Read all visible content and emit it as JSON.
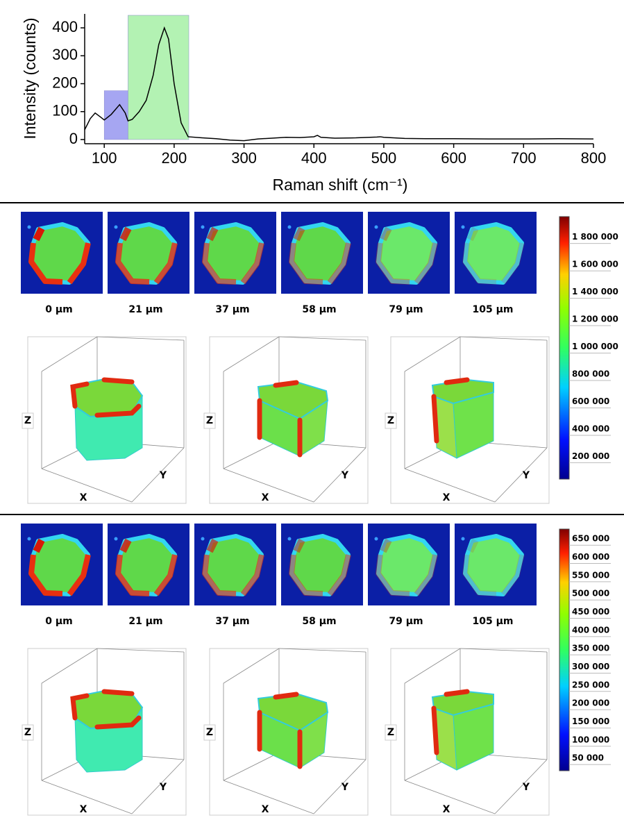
{
  "chart_data": {
    "type": "line",
    "ylabel": "Intensity (counts)",
    "xlabel": "Raman shift (cm⁻¹)",
    "x": [
      72,
      80,
      87,
      95,
      100,
      110,
      122,
      130,
      134,
      140,
      150,
      160,
      170,
      178,
      186,
      192,
      200,
      210,
      220,
      240,
      260,
      280,
      300,
      320,
      340,
      360,
      380,
      400,
      405,
      410,
      430,
      460,
      490,
      495,
      500,
      530,
      560,
      600,
      650,
      700,
      750,
      800
    ],
    "series": [
      {
        "color": "#000000",
        "values": [
          35,
          75,
          95,
          80,
          70,
          90,
          125,
          95,
          67,
          72,
          100,
          140,
          230,
          340,
          400,
          360,
          200,
          60,
          10,
          6,
          3,
          -2,
          -4,
          2,
          5,
          8,
          7,
          10,
          15,
          8,
          5,
          6,
          9,
          10,
          8,
          4,
          3,
          3,
          2,
          2,
          3,
          2
        ]
      }
    ],
    "regions": [
      {
        "xmin": 100,
        "xmax": 134,
        "ymax": 175,
        "color": "#a6a6f2"
      },
      {
        "xmin": 134,
        "xmax": 221,
        "ymax": 445,
        "color": "#b3f2b3"
      }
    ],
    "xlim": [
      72,
      800
    ],
    "xticks": [
      100,
      200,
      300,
      400,
      500,
      600,
      700,
      800
    ],
    "ylim": [
      -15,
      450
    ],
    "yticks": [
      0,
      100,
      200,
      300,
      400
    ]
  },
  "panels": [
    {
      "depths": [
        "0 µm",
        "21 µm",
        "37 µm",
        "58 µm",
        "79 µm",
        "105 µm"
      ],
      "views": [
        {
          "z": "Z",
          "x": "X",
          "y": "Y"
        },
        {
          "z": "Z",
          "x": "X",
          "y": "Y"
        },
        {
          "z": "Z",
          "x": "X",
          "y": "Y"
        }
      ],
      "colorbar": {
        "lim": [
          35000,
          1950000
        ],
        "ticks": [
          {
            "value": 1800000,
            "label": "1 800 000"
          },
          {
            "value": 1600000,
            "label": "1 600 000"
          },
          {
            "value": 1400000,
            "label": "1 400 000"
          },
          {
            "value": 1200000,
            "label": "1 200 000"
          },
          {
            "value": 1000000,
            "label": "1 000 000"
          },
          {
            "value": 800000,
            "label": "800 000"
          },
          {
            "value": 600000,
            "label": "600 000"
          },
          {
            "value": 400000,
            "label": "400 000"
          },
          {
            "value": 200000,
            "label": "200 000"
          }
        ]
      }
    },
    {
      "depths": [
        "0 µm",
        "21 µm",
        "37 µm",
        "58 µm",
        "79 µm",
        "105 µm"
      ],
      "views": [
        {
          "z": "Z",
          "x": "X",
          "y": "Y"
        },
        {
          "z": "Z",
          "x": "X",
          "y": "Y"
        },
        {
          "z": "Z",
          "x": "X",
          "y": "Y"
        }
      ],
      "colorbar": {
        "lim": [
          16000,
          677000
        ],
        "ticks": [
          {
            "value": 650000,
            "label": "650 000"
          },
          {
            "value": 600000,
            "label": "600 000"
          },
          {
            "value": 550000,
            "label": "550 000"
          },
          {
            "value": 500000,
            "label": "500 000"
          },
          {
            "value": 450000,
            "label": "450 000"
          },
          {
            "value": 400000,
            "label": "400 000"
          },
          {
            "value": 350000,
            "label": "350 000"
          },
          {
            "value": 300000,
            "label": "300 000"
          },
          {
            "value": 250000,
            "label": "250 000"
          },
          {
            "value": 200000,
            "label": "200 000"
          },
          {
            "value": 150000,
            "label": "150 000"
          },
          {
            "value": 100000,
            "label": "100 000"
          },
          {
            "value": 50000,
            "label": "50 000"
          }
        ]
      }
    }
  ]
}
